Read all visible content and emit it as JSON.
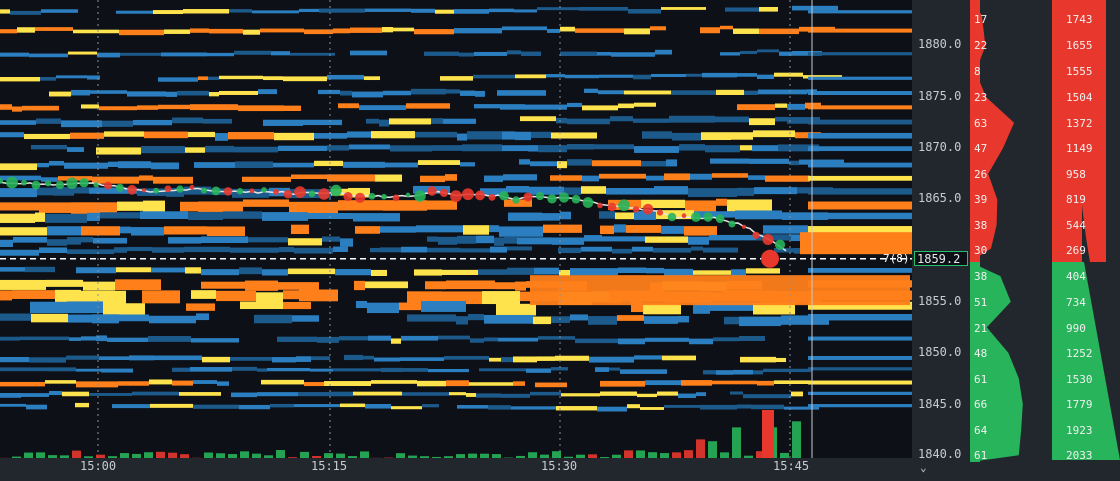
{
  "chart_data": {
    "type": "heatmap",
    "x_ticks": [
      "15:00",
      "15:15",
      "15:30",
      "15:45"
    ],
    "y_ticks": [
      "1880.0",
      "1875.0",
      "1870.0",
      "1865.0",
      "1859.2",
      "1855.0",
      "1850.0",
      "1845.0",
      "1840.0"
    ],
    "current_price": "1859.2",
    "current_marker": "7(8)",
    "ylim": [
      1840,
      1884
    ],
    "ask_ladder": [
      {
        "price": 1883,
        "size": "17",
        "cum": "1743"
      },
      {
        "price": 1880,
        "size": "22",
        "cum": "1655"
      },
      {
        "price": 1877.5,
        "size": "8",
        "cum": "1555"
      },
      {
        "price": 1875,
        "size": "23",
        "cum": "1504"
      },
      {
        "price": 1872.5,
        "size": "63",
        "cum": "1372"
      },
      {
        "price": 1870,
        "size": "47",
        "cum": "1149"
      },
      {
        "price": 1867.5,
        "size": "26",
        "cum": "958"
      },
      {
        "price": 1865,
        "size": "39",
        "cum": "819"
      },
      {
        "price": 1862.5,
        "size": "38",
        "cum": "544"
      },
      {
        "price": 1860.2,
        "size": "30",
        "cum": "269"
      }
    ],
    "bid_ladder": [
      {
        "price": 1857.5,
        "size": "38",
        "cum": "404"
      },
      {
        "price": 1855,
        "size": "51",
        "cum": "734"
      },
      {
        "price": 1852.5,
        "size": "21",
        "cum": "990"
      },
      {
        "price": 1850,
        "size": "48",
        "cum": "1252"
      },
      {
        "price": 1847.5,
        "size": "61",
        "cum": "1530"
      },
      {
        "price": 1845,
        "size": "66",
        "cum": "1779"
      },
      {
        "price": 1842.5,
        "size": "64",
        "cum": "1923"
      },
      {
        "price": 1840,
        "size": "61",
        "cum": "2033"
      }
    ],
    "colors": {
      "background": "#0d1117",
      "ask": "#e8372c",
      "bid": "#27b45a",
      "high": "#ff7f1a",
      "mid": "#ffe34d",
      "low": "#2b7fc0",
      "price_line": "#e6e6e6"
    }
  }
}
